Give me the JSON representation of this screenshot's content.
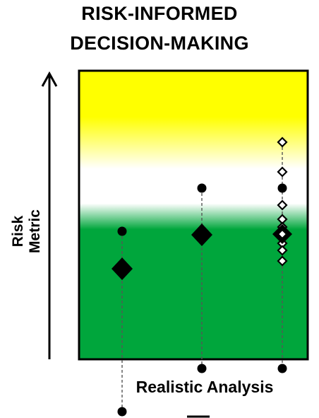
{
  "title": {
    "line1": "RISK-INFORMED",
    "line2": "DECISION-MAKING"
  },
  "axes": {
    "y_label": "Risk Metric",
    "x_label": "Realistic Analysis"
  },
  "colors": {
    "top_zone": "#ffff00",
    "middle_zone": "#ffffff",
    "bottom_zone": "#00a63c",
    "marker": "#000000"
  },
  "icons": [
    "up-arrow-icon",
    "diamond-marker-icon",
    "circle-marker-icon"
  ]
}
